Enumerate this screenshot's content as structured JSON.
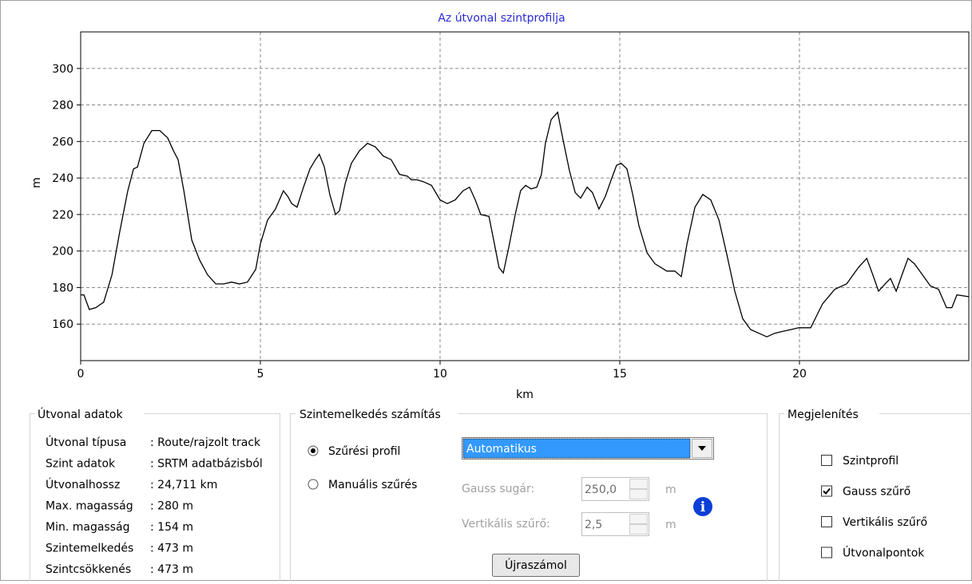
{
  "chart_data": {
    "type": "line",
    "title": "Az útvonal szintprofilja",
    "x_label": "km",
    "y_label": "m",
    "x": [
      0,
      0.09,
      0.24,
      0.42,
      0.64,
      0.87,
      1.09,
      1.31,
      1.47,
      1.58,
      1.76,
      1.98,
      2.2,
      2.42,
      2.58,
      2.71,
      2.87,
      3.09,
      3.31,
      3.53,
      3.76,
      3.98,
      4.2,
      4.42,
      4.64,
      4.87,
      5,
      5.2,
      5.42,
      5.64,
      5.76,
      5.87,
      6.02,
      6.2,
      6.38,
      6.53,
      6.64,
      6.78,
      6.93,
      7.09,
      7.2,
      7.36,
      7.53,
      7.76,
      7.98,
      8.2,
      8.42,
      8.64,
      8.87,
      9.09,
      9.2,
      9.36,
      9.53,
      9.76,
      10,
      10.2,
      10.42,
      10.64,
      10.82,
      10.98,
      11.13,
      11.36,
      11.49,
      11.64,
      11.76,
      11.91,
      12.09,
      12.24,
      12.38,
      12.53,
      12.69,
      12.82,
      12.93,
      13.09,
      13.27,
      13.42,
      13.6,
      13.76,
      13.91,
      14.09,
      14.24,
      14.42,
      14.6,
      14.76,
      14.91,
      15.04,
      15.2,
      15.36,
      15.53,
      15.76,
      15.98,
      16.31,
      16.53,
      16.71,
      16.87,
      17.09,
      17.31,
      17.53,
      17.76,
      17.98,
      18.2,
      18.42,
      18.64,
      18.87,
      19.09,
      19.31,
      19.53,
      19.76,
      19.98,
      20.31,
      20.64,
      20.98,
      21.31,
      21.64,
      21.87,
      22.04,
      22.2,
      22.38,
      22.53,
      22.69,
      22.87,
      23.02,
      23.2,
      23.42,
      23.64,
      23.87,
      24.09,
      24.24,
      24.38,
      24.71
    ],
    "values": [
      176,
      176,
      168,
      169,
      172,
      187,
      211,
      233,
      245,
      246,
      259,
      266,
      266,
      262,
      255,
      250,
      233,
      206,
      195,
      187,
      182,
      182,
      183,
      182,
      183,
      190,
      204,
      217,
      223,
      233,
      230,
      226,
      224,
      235,
      245,
      250,
      253,
      246,
      231,
      220,
      222,
      237,
      248,
      255,
      259,
      257,
      252,
      250,
      242,
      241,
      239,
      239,
      238,
      236,
      228,
      226,
      228,
      233,
      235,
      228,
      220,
      219,
      206,
      191,
      188,
      202,
      220,
      233,
      236,
      234,
      235,
      242,
      259,
      272,
      276,
      261,
      244,
      232,
      229,
      235,
      232,
      223,
      230,
      239,
      247,
      248,
      245,
      231,
      214,
      199,
      193,
      189,
      189,
      186,
      204,
      224,
      231,
      228,
      217,
      198,
      178,
      163,
      157,
      155,
      153,
      155,
      156,
      157,
      158,
      158,
      171,
      179,
      182,
      191,
      196,
      187,
      178,
      182,
      185,
      178,
      188,
      196,
      193,
      187,
      181,
      179,
      169,
      169,
      176,
      175
    ],
    "color": "#000000",
    "title_color": "#2b2bd6",
    "xlim": [
      0,
      24.711
    ],
    "xticks": [
      0,
      5,
      10,
      15,
      20
    ],
    "ylim": [
      140,
      320
    ],
    "yticks": [
      160,
      180,
      200,
      220,
      240,
      260,
      280,
      300
    ],
    "grid": true
  },
  "route_data": {
    "title": "Útvonal adatok",
    "rows": [
      [
        "Útvonal típusa",
        ": Route/rajzolt track"
      ],
      [
        "Szint adatok",
        ": SRTM adatbázisból"
      ],
      [
        "Útvonalhossz",
        ": 24,711 km"
      ],
      [
        "Max. magasság",
        ": 280 m"
      ],
      [
        "Min. magasság",
        ": 154 m"
      ],
      [
        "Szintemelkedés",
        ": 473 m"
      ],
      [
        "Szintcsökkenés",
        ": 473 m"
      ]
    ]
  },
  "calc": {
    "title": "Szintemelkedés számítás",
    "radios": [
      {
        "label": "Szűrési profil",
        "checked": true
      },
      {
        "label": "Manuális szűrés",
        "checked": false
      }
    ],
    "combo": "Automatikus",
    "fields": [
      {
        "label": "Gauss sugár:",
        "value": "250,0",
        "unit": "m"
      },
      {
        "label": "Vertikális szűrő:",
        "value": "2,5",
        "unit": "m"
      }
    ],
    "button": "Újraszámol"
  },
  "display": {
    "title": "Megjelenítés",
    "checkboxes": [
      {
        "label": "Szintprofil",
        "checked": false
      },
      {
        "label": "Gauss szűrő",
        "checked": true
      },
      {
        "label": "Vertikális szűrő",
        "checked": false
      },
      {
        "label": "Útvonalpontok",
        "checked": false
      }
    ]
  }
}
